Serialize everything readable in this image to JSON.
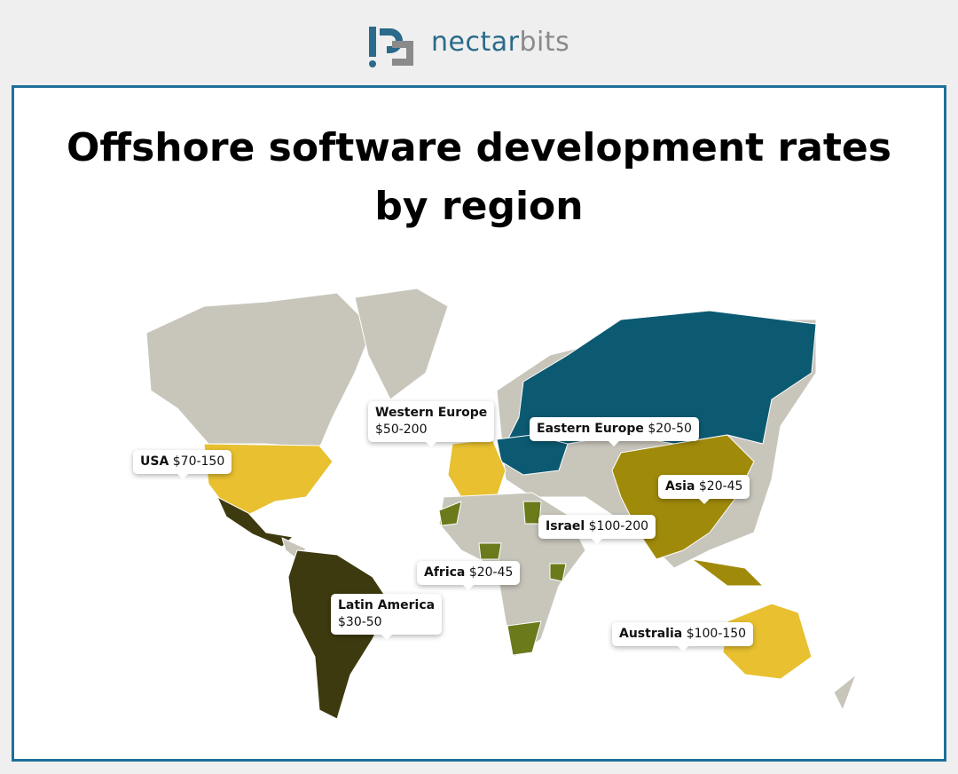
{
  "logo": {
    "part1": "nectar",
    "part2": "bits"
  },
  "title": "Offshore software development rates by region",
  "regions": [
    {
      "name": "USA",
      "rate": "$70-150"
    },
    {
      "name": "Western Europe",
      "rate": "$50-200"
    },
    {
      "name": "Eastern Europe",
      "rate": "$20-50"
    },
    {
      "name": "Asia",
      "rate": "$20-45"
    },
    {
      "name": "Israel",
      "rate": "$100-200"
    },
    {
      "name": "Africa",
      "rate": "$20-45"
    },
    {
      "name": "Latin America",
      "rate": "$30-50"
    },
    {
      "name": "Australia",
      "rate": "$100-150"
    }
  ]
}
